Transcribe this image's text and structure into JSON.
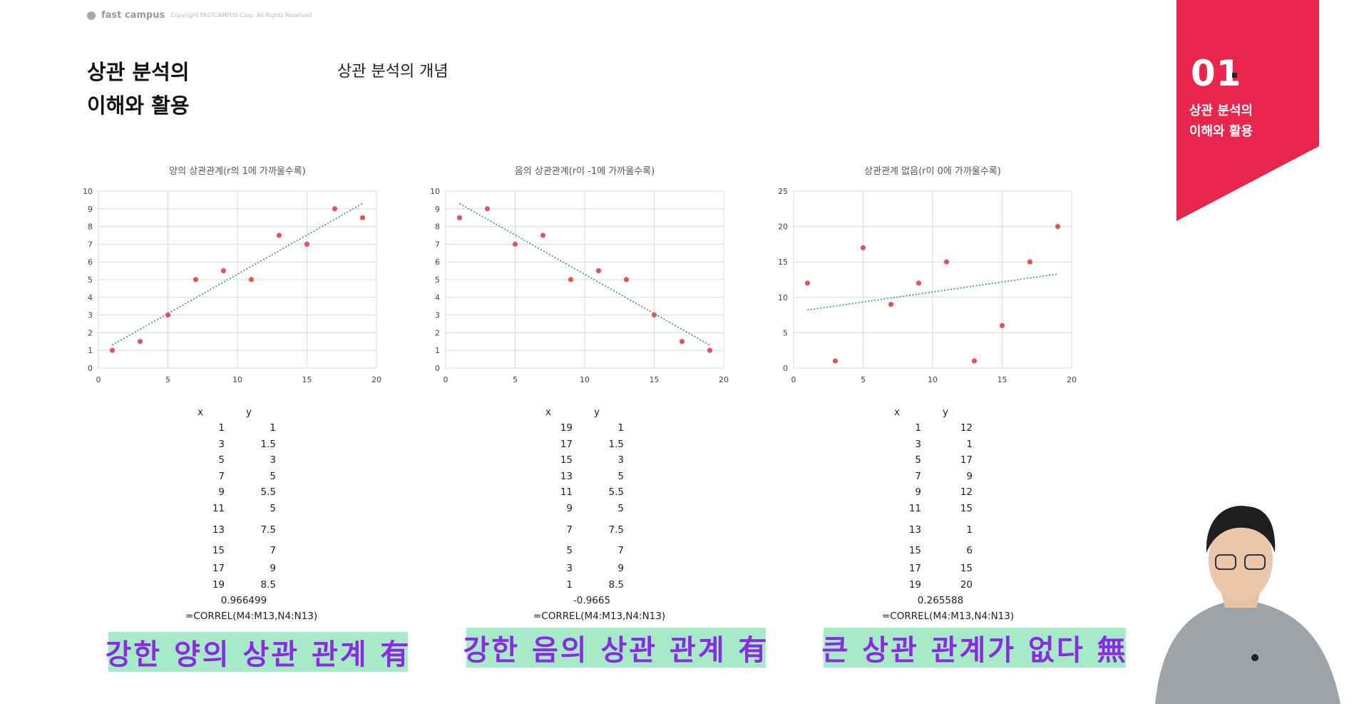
{
  "logo": {
    "brand": "fast campus",
    "copyright": "Copyright FASTCAMPUS Corp. All Rights Reserved"
  },
  "page": {
    "title_line1": "상관 분석의",
    "title_line2": "이해와 활용",
    "subtitle": "상관 분석의 개념"
  },
  "badge": {
    "number": "01",
    "label_line1": "상관 분석의",
    "label_line2": "이해와 활용",
    "color": "#e8254a"
  },
  "colors": {
    "point": "#e05555",
    "trendline": "#3f86a8",
    "grid": "#d9d9d9",
    "caption_bg": "#a6ebc8",
    "caption_text": "#8a2be2"
  },
  "chart_data": [
    {
      "type": "scatter",
      "title": "양의 상관관계(r의 1에 가까울수록)",
      "xlim": [
        0,
        20
      ],
      "ylim": [
        0,
        10
      ],
      "xticks": [
        0,
        5,
        10,
        15,
        20
      ],
      "yticks": [
        0,
        1,
        2,
        3,
        4,
        5,
        6,
        7,
        8,
        9,
        10
      ],
      "grid": true,
      "trendline": true,
      "x": [
        1,
        3,
        5,
        7,
        9,
        11,
        13,
        15,
        17,
        19
      ],
      "y": [
        1,
        1.5,
        3,
        5,
        5.5,
        5,
        7.5,
        7,
        9,
        8.5
      ],
      "trend_y": [
        1.3,
        9.3
      ]
    },
    {
      "type": "scatter",
      "title": "음의 상관관계(r이 -1에 가까울수록)",
      "xlim": [
        0,
        20
      ],
      "ylim": [
        0,
        10
      ],
      "xticks": [
        0,
        5,
        10,
        15,
        20
      ],
      "yticks": [
        0,
        1,
        2,
        3,
        4,
        5,
        6,
        7,
        8,
        9,
        10
      ],
      "grid": true,
      "trendline": true,
      "x": [
        19,
        17,
        15,
        13,
        11,
        9,
        7,
        5,
        3,
        1
      ],
      "y": [
        1,
        1.5,
        3,
        5,
        5.5,
        5,
        7.5,
        7,
        9,
        8.5
      ],
      "trend_y": [
        9.3,
        1.3
      ]
    },
    {
      "type": "scatter",
      "title": "상관관계 없음(r이 0에 가까울수록)",
      "xlim": [
        0,
        20
      ],
      "ylim": [
        0,
        25
      ],
      "xticks": [
        0,
        5,
        10,
        15,
        20
      ],
      "yticks": [
        0,
        5,
        10,
        15,
        20,
        25
      ],
      "grid": true,
      "trendline": true,
      "x": [
        1,
        3,
        5,
        7,
        9,
        11,
        13,
        15,
        17,
        19
      ],
      "y": [
        12,
        1,
        17,
        9,
        12,
        15,
        1,
        6,
        15,
        20
      ],
      "trend_y": [
        8.2,
        13.3
      ]
    }
  ],
  "tables": [
    {
      "header": [
        "x",
        "y"
      ],
      "rows": [
        [
          "1",
          "1"
        ],
        [
          "3",
          "1.5"
        ],
        [
          "5",
          "3"
        ],
        [
          "7",
          "5"
        ],
        [
          "9",
          "5.5"
        ],
        [
          "11",
          "5"
        ],
        [
          "13",
          "7.5"
        ],
        [
          "15",
          "7"
        ],
        [
          "17",
          "9"
        ],
        [
          "19",
          "8.5"
        ]
      ],
      "result": "0.966499",
      "formula": "=CORREL(M4:M13,N4:N13)"
    },
    {
      "header": [
        "x",
        "y"
      ],
      "rows": [
        [
          "19",
          "1"
        ],
        [
          "17",
          "1.5"
        ],
        [
          "15",
          "3"
        ],
        [
          "13",
          "5"
        ],
        [
          "11",
          "5.5"
        ],
        [
          "9",
          "5"
        ],
        [
          "7",
          "7.5"
        ],
        [
          "5",
          "7"
        ],
        [
          "3",
          "9"
        ],
        [
          "1",
          "8.5"
        ]
      ],
      "result": "-0.9665",
      "formula": "=CORREL(M4:M13,N4:N13)"
    },
    {
      "header": [
        "x",
        "y"
      ],
      "rows": [
        [
          "1",
          "12"
        ],
        [
          "3",
          "1"
        ],
        [
          "5",
          "17"
        ],
        [
          "7",
          "9"
        ],
        [
          "9",
          "12"
        ],
        [
          "11",
          "15"
        ],
        [
          "13",
          "1"
        ],
        [
          "15",
          "6"
        ],
        [
          "17",
          "15"
        ],
        [
          "19",
          "20"
        ]
      ],
      "result": "0.265588",
      "formula": "=CORREL(M4:M13,N4:N13)"
    }
  ],
  "captions": [
    "강한 양의 상관 관계 有",
    "강한 음의 상관 관계 有",
    "큰 상관 관계가 없다 無"
  ]
}
